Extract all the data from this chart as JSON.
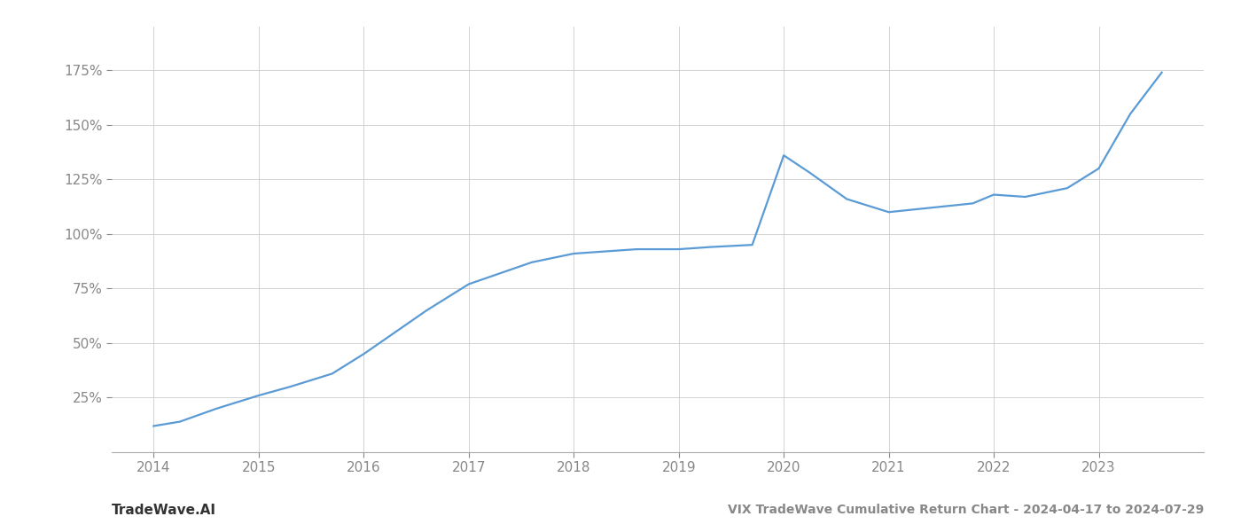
{
  "title": "VIX TradeWave Cumulative Return Chart - 2024-04-17 to 2024-07-29",
  "watermark": "TradeWave.AI",
  "line_color": "#5b9bd5",
  "background_color": "#ffffff",
  "grid_color": "#cccccc",
  "text_color": "#888888",
  "watermark_color": "#333333",
  "title_color": "#888888",
  "years": [
    2014.0,
    2014.25,
    2014.6,
    2015.0,
    2015.3,
    2015.7,
    2016.0,
    2016.3,
    2016.6,
    2017.0,
    2017.3,
    2017.6,
    2018.0,
    2018.3,
    2018.6,
    2019.0,
    2019.3,
    2019.7,
    2020.0,
    2020.25,
    2020.6,
    2021.0,
    2021.4,
    2021.8,
    2022.0,
    2022.3,
    2022.7,
    2023.0,
    2023.3,
    2023.6
  ],
  "values": [
    12,
    14,
    20,
    26,
    30,
    36,
    45,
    55,
    65,
    77,
    82,
    87,
    91,
    92,
    93,
    93,
    94,
    95,
    136,
    128,
    116,
    110,
    112,
    114,
    118,
    117,
    121,
    130,
    155,
    174
  ],
  "xlim": [
    2013.6,
    2024.0
  ],
  "ylim": [
    0,
    195
  ],
  "yticks": [
    25,
    50,
    75,
    100,
    125,
    150,
    175
  ],
  "ytick_labels": [
    "25%",
    "50%",
    "75%",
    "100%",
    "125%",
    "150%",
    "175%"
  ],
  "xticks": [
    2014,
    2015,
    2016,
    2017,
    2018,
    2019,
    2020,
    2021,
    2022,
    2023
  ],
  "title_fontsize": 10,
  "tick_fontsize": 11,
  "watermark_fontsize": 11,
  "line_width": 1.6
}
